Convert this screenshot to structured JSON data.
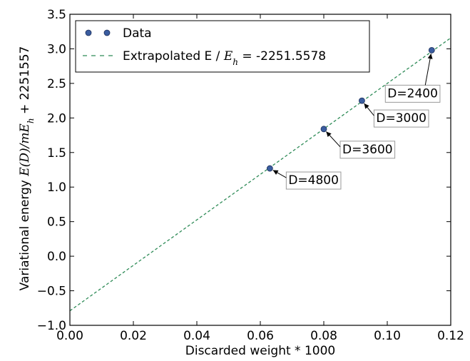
{
  "chart_data": {
    "type": "scatter",
    "xlabel": "Discarded weight * 1000",
    "ylabel": {
      "prefix": "Variational energy ",
      "math": "E(D)/mE",
      "math_sub": "h",
      "suffix": " + 2251557"
    },
    "xlim": [
      0.0,
      0.12
    ],
    "ylim": [
      -1.0,
      3.5
    ],
    "xticks": [
      0.0,
      0.02,
      0.04,
      0.06,
      0.08,
      0.1,
      0.12
    ],
    "xtick_labels": [
      "0.00",
      "0.02",
      "0.04",
      "0.06",
      "0.08",
      "0.10",
      "0.12"
    ],
    "yticks": [
      -1.0,
      -0.5,
      0.0,
      0.5,
      1.0,
      1.5,
      2.0,
      2.5,
      3.0,
      3.5
    ],
    "ytick_labels": [
      "−1.0",
      "−0.5",
      "0.0",
      "0.5",
      "1.0",
      "1.5",
      "2.0",
      "2.5",
      "3.0",
      "3.5"
    ],
    "grid": false,
    "legend_position": "top-left",
    "series": [
      {
        "name": "Data",
        "kind": "scatter",
        "color": "#3a5da0",
        "points": [
          {
            "x": 0.063,
            "y": 1.27,
            "label": "D=4800"
          },
          {
            "x": 0.08,
            "y": 1.84,
            "label": "D=3600"
          },
          {
            "x": 0.092,
            "y": 2.25,
            "label": "D=3000"
          },
          {
            "x": 0.114,
            "y": 2.98,
            "label": "D=2400"
          }
        ]
      },
      {
        "name": "Extrapolated E / ",
        "name_math": "E",
        "name_math_sub": "h",
        "name_suffix": " = -2251.5578",
        "kind": "line",
        "style": "dashed",
        "color": "#2e8b57",
        "intercept": -0.79,
        "slope": 32.9
      }
    ]
  }
}
